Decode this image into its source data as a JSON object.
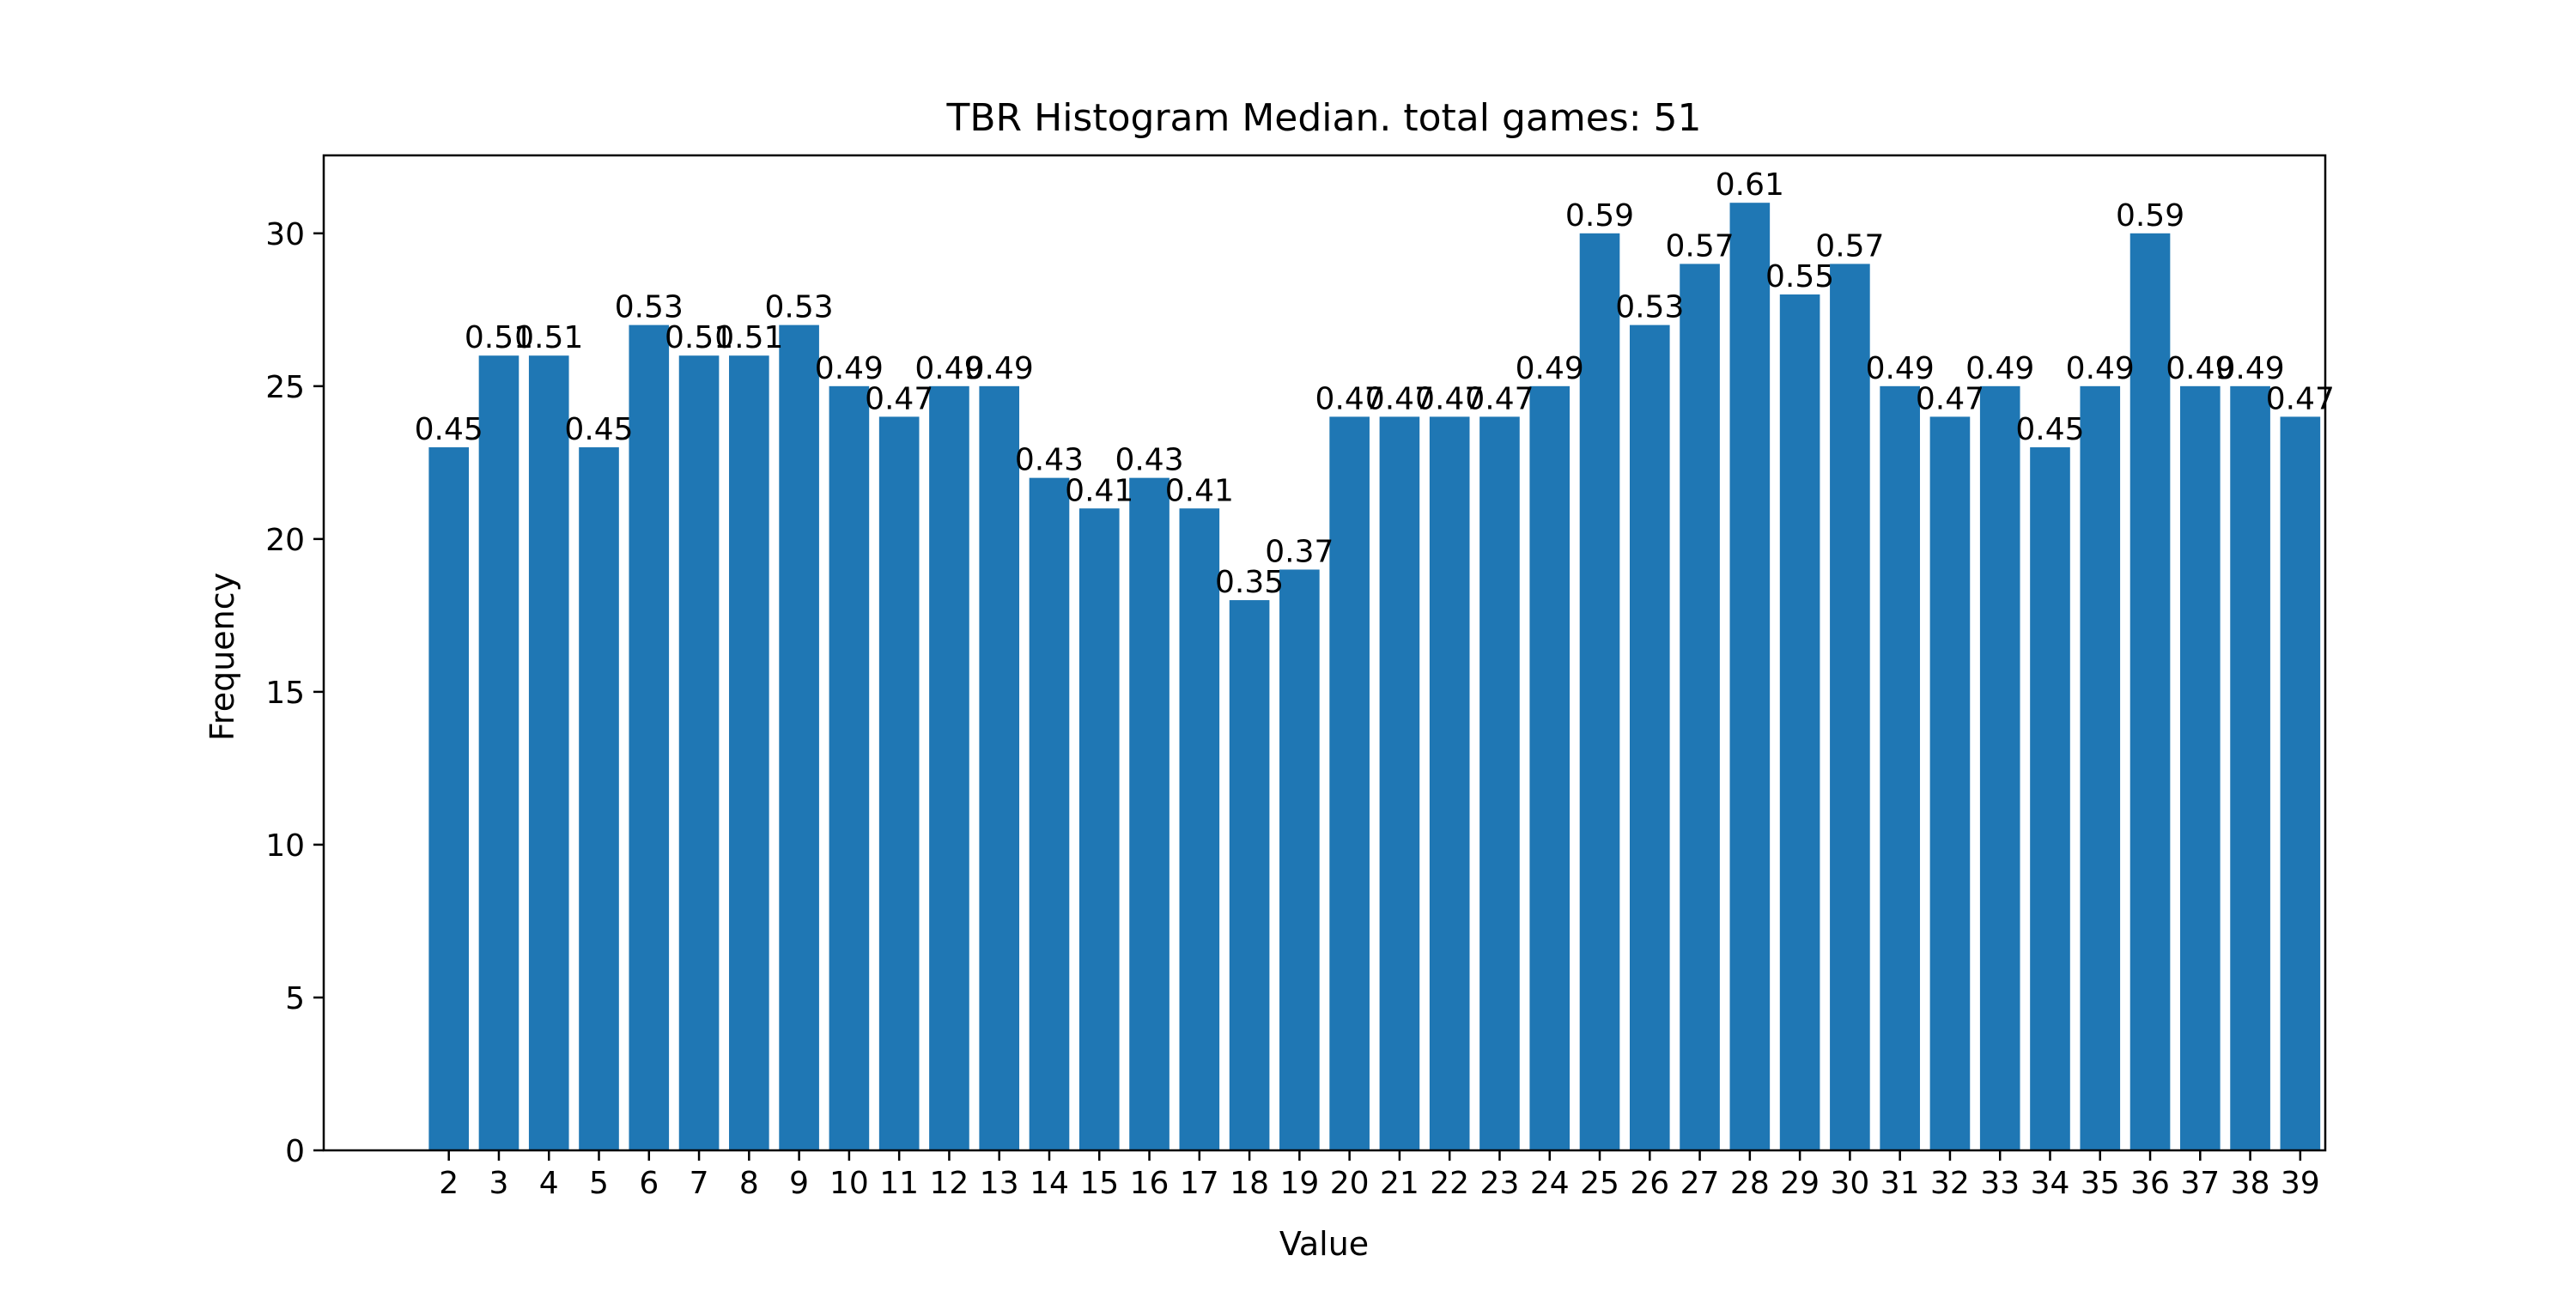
{
  "chart_data": {
    "type": "bar",
    "title": "TBR Histogram Median. total games: 51",
    "xlabel": "Value",
    "ylabel": "Frequency",
    "ylim": [
      0,
      32.55
    ],
    "xlim": [
      -0.5,
      39.5
    ],
    "yticks": [
      0,
      5,
      10,
      15,
      20,
      25,
      30
    ],
    "grid": false,
    "bar_color": "#1f77b4",
    "categories": [
      "2",
      "3",
      "4",
      "5",
      "6",
      "7",
      "8",
      "9",
      "10",
      "11",
      "12",
      "13",
      "14",
      "15",
      "16",
      "17",
      "18",
      "19",
      "20",
      "21",
      "22",
      "23",
      "24",
      "25",
      "26",
      "27",
      "28",
      "29",
      "30",
      "31",
      "32",
      "33",
      "34",
      "35",
      "36",
      "37",
      "38",
      "39"
    ],
    "x": [
      2,
      3,
      4,
      5,
      6,
      7,
      8,
      9,
      10,
      11,
      12,
      13,
      14,
      15,
      16,
      17,
      18,
      19,
      20,
      21,
      22,
      23,
      24,
      25,
      26,
      27,
      28,
      29,
      30,
      31,
      32,
      33,
      34,
      35,
      36,
      37,
      38,
      39
    ],
    "values": [
      23,
      26,
      26,
      23,
      27,
      26,
      26,
      27,
      25,
      24,
      25,
      25,
      22,
      21,
      22,
      21,
      18,
      19,
      24,
      24,
      24,
      24,
      25,
      30,
      27,
      29,
      31,
      28,
      29,
      25,
      24,
      25,
      23,
      25,
      30,
      25,
      25,
      24
    ],
    "data_labels": [
      "0.45",
      "0.51",
      "0.51",
      "0.45",
      "0.53",
      "0.51",
      "0.51",
      "0.53",
      "0.49",
      "0.47",
      "0.49",
      "0.49",
      "0.43",
      "0.41",
      "0.43",
      "0.41",
      "0.35",
      "0.37",
      "0.47",
      "0.47",
      "0.47",
      "0.47",
      "0.49",
      "0.59",
      "0.53",
      "0.57",
      "0.61",
      "0.55",
      "0.57",
      "0.49",
      "0.47",
      "0.49",
      "0.45",
      "0.49",
      "0.59",
      "0.49",
      "0.49",
      "0.47"
    ]
  }
}
